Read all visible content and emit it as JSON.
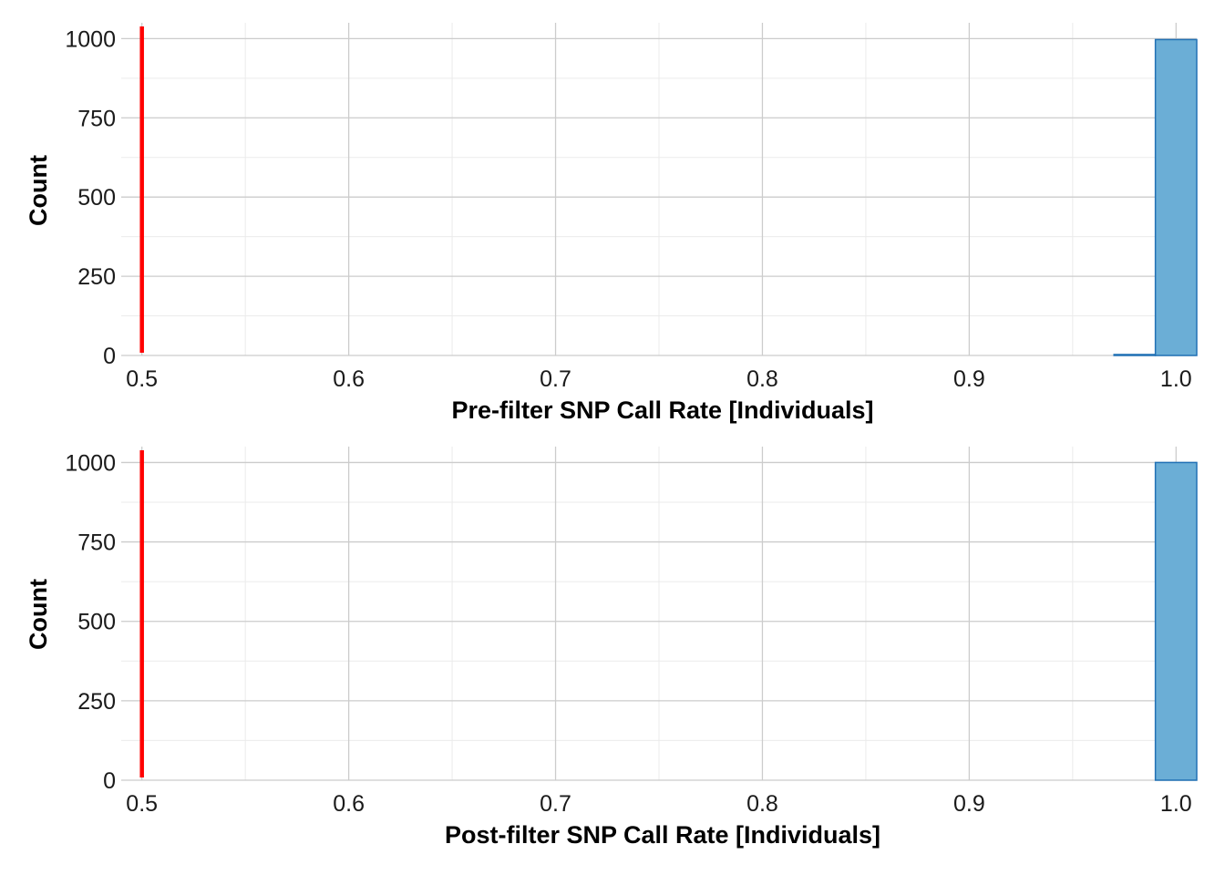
{
  "chart_data": [
    {
      "type": "bar",
      "title": "",
      "xlabel": "Pre-filter SNP Call Rate [Individuals]",
      "ylabel": "Count",
      "xlim": [
        0.49,
        1.01
      ],
      "ylim": [
        0,
        1050
      ],
      "x_ticks": [
        "0.5",
        "0.6",
        "0.7",
        "0.8",
        "0.9",
        "1.0"
      ],
      "y_ticks": [
        "0",
        "250",
        "500",
        "750",
        "1000"
      ],
      "grid": true,
      "bin_width": 0.02,
      "bins": [
        {
          "x0": 0.49,
          "x1": 0.51,
          "count": 0
        },
        {
          "x0": 0.51,
          "x1": 0.53,
          "count": 0
        },
        {
          "x0": 0.53,
          "x1": 0.55,
          "count": 0
        },
        {
          "x0": 0.55,
          "x1": 0.57,
          "count": 0
        },
        {
          "x0": 0.57,
          "x1": 0.59,
          "count": 0
        },
        {
          "x0": 0.59,
          "x1": 0.61,
          "count": 0
        },
        {
          "x0": 0.61,
          "x1": 0.63,
          "count": 0
        },
        {
          "x0": 0.63,
          "x1": 0.65,
          "count": 0
        },
        {
          "x0": 0.65,
          "x1": 0.67,
          "count": 0
        },
        {
          "x0": 0.67,
          "x1": 0.69,
          "count": 0
        },
        {
          "x0": 0.69,
          "x1": 0.71,
          "count": 0
        },
        {
          "x0": 0.71,
          "x1": 0.73,
          "count": 0
        },
        {
          "x0": 0.73,
          "x1": 0.75,
          "count": 0
        },
        {
          "x0": 0.75,
          "x1": 0.77,
          "count": 0
        },
        {
          "x0": 0.77,
          "x1": 0.79,
          "count": 0
        },
        {
          "x0": 0.79,
          "x1": 0.81,
          "count": 0
        },
        {
          "x0": 0.81,
          "x1": 0.83,
          "count": 0
        },
        {
          "x0": 0.83,
          "x1": 0.85,
          "count": 0
        },
        {
          "x0": 0.85,
          "x1": 0.87,
          "count": 0
        },
        {
          "x0": 0.87,
          "x1": 0.89,
          "count": 0
        },
        {
          "x0": 0.89,
          "x1": 0.91,
          "count": 0
        },
        {
          "x0": 0.91,
          "x1": 0.93,
          "count": 0
        },
        {
          "x0": 0.93,
          "x1": 0.95,
          "count": 0
        },
        {
          "x0": 0.95,
          "x1": 0.97,
          "count": 0
        },
        {
          "x0": 0.97,
          "x1": 0.99,
          "count": 3
        },
        {
          "x0": 0.99,
          "x1": 1.01,
          "count": 997
        }
      ],
      "threshold": 0.5,
      "bar_fill": "#6baed6",
      "bar_stroke": "#2171b5",
      "threshold_color": "#ff0000"
    },
    {
      "type": "bar",
      "title": "",
      "xlabel": "Post-filter SNP Call Rate [Individuals]",
      "ylabel": "Count",
      "xlim": [
        0.49,
        1.01
      ],
      "ylim": [
        0,
        1050
      ],
      "x_ticks": [
        "0.5",
        "0.6",
        "0.7",
        "0.8",
        "0.9",
        "1.0"
      ],
      "y_ticks": [
        "0",
        "250",
        "500",
        "750",
        "1000"
      ],
      "grid": true,
      "bin_width": 0.02,
      "bins": [
        {
          "x0": 0.49,
          "x1": 0.51,
          "count": 0
        },
        {
          "x0": 0.51,
          "x1": 0.53,
          "count": 0
        },
        {
          "x0": 0.53,
          "x1": 0.55,
          "count": 0
        },
        {
          "x0": 0.55,
          "x1": 0.57,
          "count": 0
        },
        {
          "x0": 0.57,
          "x1": 0.59,
          "count": 0
        },
        {
          "x0": 0.59,
          "x1": 0.61,
          "count": 0
        },
        {
          "x0": 0.61,
          "x1": 0.63,
          "count": 0
        },
        {
          "x0": 0.63,
          "x1": 0.65,
          "count": 0
        },
        {
          "x0": 0.65,
          "x1": 0.67,
          "count": 0
        },
        {
          "x0": 0.67,
          "x1": 0.69,
          "count": 0
        },
        {
          "x0": 0.69,
          "x1": 0.71,
          "count": 0
        },
        {
          "x0": 0.71,
          "x1": 0.73,
          "count": 0
        },
        {
          "x0": 0.73,
          "x1": 0.75,
          "count": 0
        },
        {
          "x0": 0.75,
          "x1": 0.77,
          "count": 0
        },
        {
          "x0": 0.77,
          "x1": 0.79,
          "count": 0
        },
        {
          "x0": 0.79,
          "x1": 0.81,
          "count": 0
        },
        {
          "x0": 0.81,
          "x1": 0.83,
          "count": 0
        },
        {
          "x0": 0.83,
          "x1": 0.85,
          "count": 0
        },
        {
          "x0": 0.85,
          "x1": 0.87,
          "count": 0
        },
        {
          "x0": 0.87,
          "x1": 0.89,
          "count": 0
        },
        {
          "x0": 0.89,
          "x1": 0.91,
          "count": 0
        },
        {
          "x0": 0.91,
          "x1": 0.93,
          "count": 0
        },
        {
          "x0": 0.93,
          "x1": 0.95,
          "count": 0
        },
        {
          "x0": 0.95,
          "x1": 0.97,
          "count": 0
        },
        {
          "x0": 0.97,
          "x1": 0.99,
          "count": 0
        },
        {
          "x0": 0.99,
          "x1": 1.01,
          "count": 1000
        }
      ],
      "threshold": 0.5,
      "bar_fill": "#6baed6",
      "bar_stroke": "#2171b5",
      "threshold_color": "#ff0000"
    }
  ]
}
